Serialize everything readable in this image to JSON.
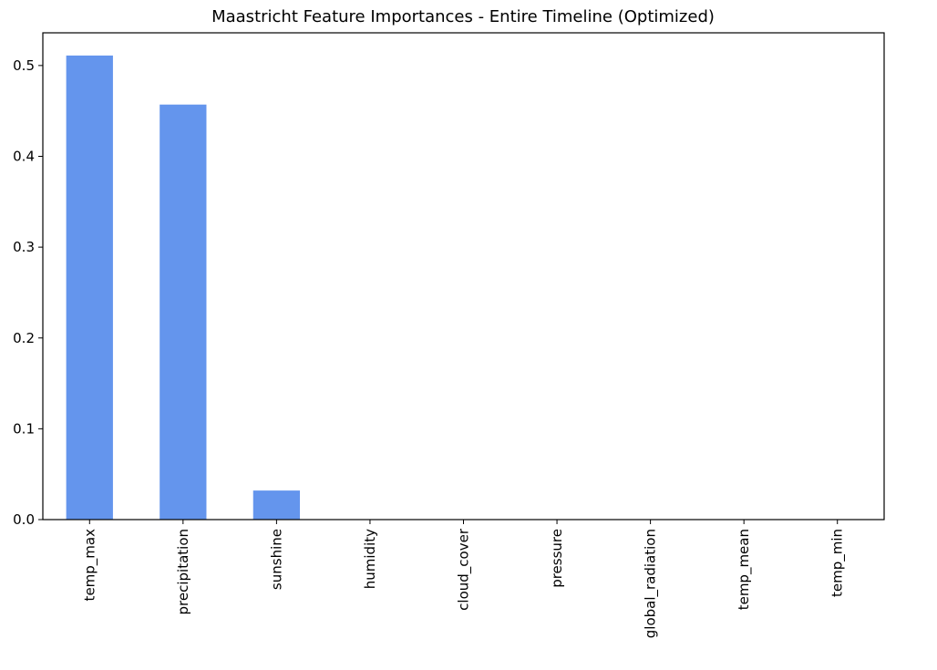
{
  "chart_data": {
    "type": "bar",
    "title": "Maastricht Feature Importances - Entire Timeline (Optimized)",
    "xlabel": "",
    "ylabel": "",
    "categories": [
      "temp_max",
      "precipitation",
      "sunshine",
      "humidity",
      "cloud_cover",
      "pressure",
      "global_radiation",
      "temp_mean",
      "temp_min"
    ],
    "values": [
      0.511,
      0.457,
      0.032,
      0.0,
      0.0,
      0.0,
      0.0,
      0.0,
      0.0
    ],
    "ylim": [
      0,
      0.536
    ],
    "yticks": [
      "0.0",
      "0.1",
      "0.2",
      "0.3",
      "0.4",
      "0.5"
    ],
    "bar_color": "#6495ED",
    "grid": false,
    "legend": "none"
  }
}
